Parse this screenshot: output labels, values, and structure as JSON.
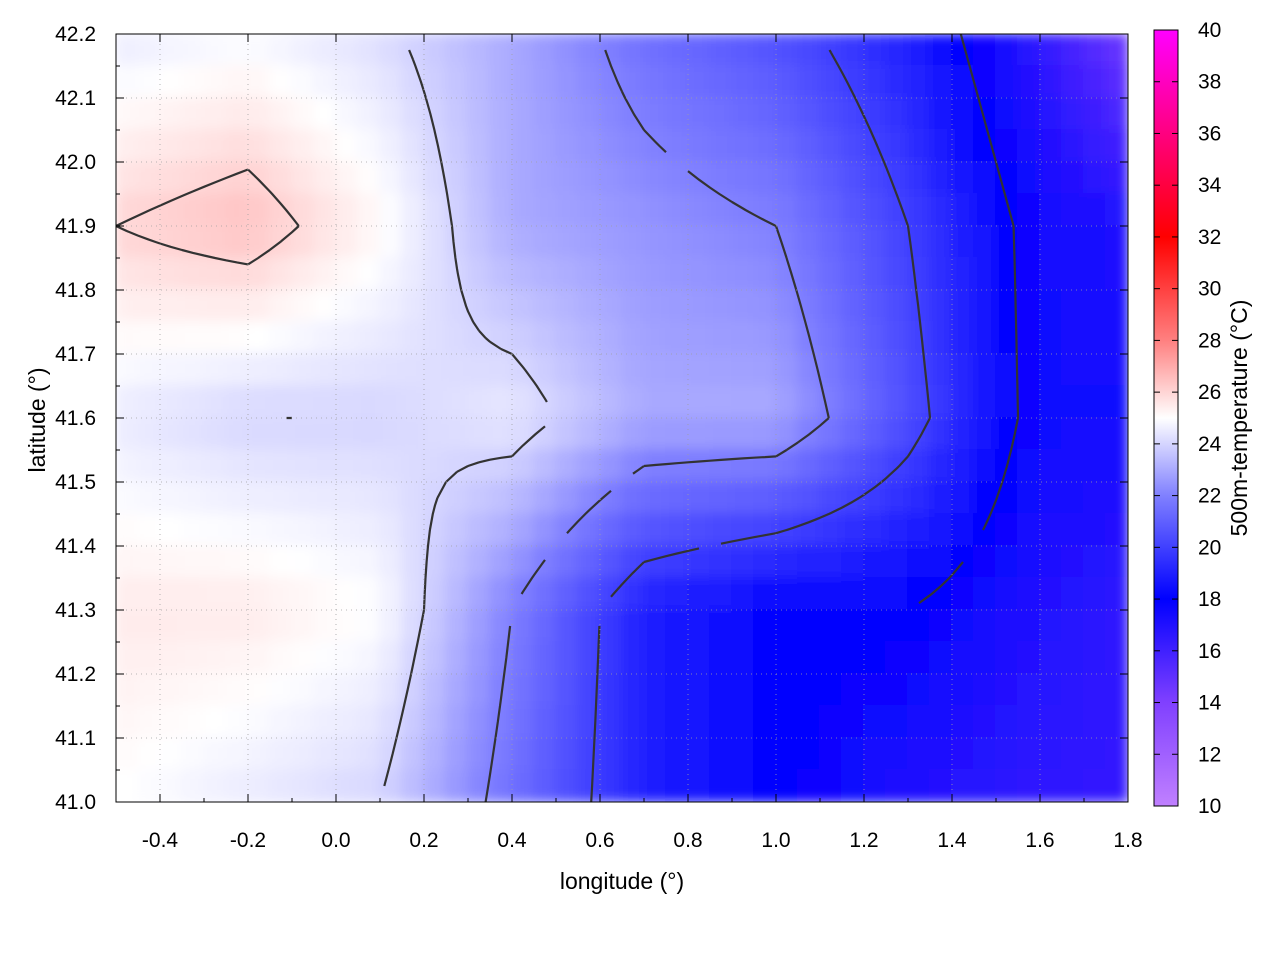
{
  "chart_data": {
    "type": "heatmap",
    "title": "",
    "xlabel": "longitude (°)",
    "ylabel": "latitude (°)",
    "colorbar_label": "500m-temperature (°C)",
    "xlim": [
      -0.5,
      1.8
    ],
    "ylim": [
      41.0,
      42.2
    ],
    "x_ticks": [
      "-0.4",
      "-0.2",
      "0.0",
      "0.2",
      "0.4",
      "0.6",
      "0.8",
      "1.0",
      "1.2",
      "1.4",
      "1.6",
      "1.8"
    ],
    "y_ticks": [
      "41.0",
      "41.1",
      "41.2",
      "41.3",
      "41.4",
      "41.5",
      "41.6",
      "41.7",
      "41.8",
      "41.9",
      "42.0",
      "42.1",
      "42.2"
    ],
    "colorbar_range": [
      10,
      40
    ],
    "colorbar_ticks": [
      "10",
      "12",
      "14",
      "16",
      "18",
      "20",
      "22",
      "24",
      "26",
      "28",
      "30",
      "32",
      "34",
      "36",
      "38",
      "40"
    ],
    "colormap": [
      {
        "value": 10,
        "color": "#c080ff"
      },
      {
        "value": 14,
        "color": "#8040ff"
      },
      {
        "value": 18,
        "color": "#0000ff"
      },
      {
        "value": 22,
        "color": "#8080ff"
      },
      {
        "value": 25,
        "color": "#ffffff"
      },
      {
        "value": 28,
        "color": "#ff8080"
      },
      {
        "value": 32,
        "color": "#ff0000"
      },
      {
        "value": 36,
        "color": "#ff0080"
      },
      {
        "value": 40,
        "color": "#ff00ff"
      }
    ],
    "grid": true,
    "contours": true,
    "grid_lon": [
      -0.5,
      -0.2,
      0.1,
      0.4,
      0.7,
      1.0,
      1.3,
      1.6,
      1.8
    ],
    "grid_lat": [
      42.2,
      41.9,
      41.6,
      41.3,
      41.0
    ],
    "temperature_grid": [
      [
        24.5,
        24.8,
        24.2,
        23.0,
        21.5,
        20.5,
        19.0,
        16.5,
        14.5
      ],
      [
        26.0,
        26.5,
        25.2,
        23.0,
        22.5,
        22.0,
        20.0,
        17.5,
        17.0
      ],
      [
        24.5,
        24.0,
        24.0,
        24.5,
        23.0,
        23.0,
        20.5,
        17.5,
        17.5
      ],
      [
        25.5,
        25.5,
        25.0,
        22.0,
        19.0,
        18.0,
        18.0,
        17.0,
        16.5
      ],
      [
        25.0,
        24.5,
        24.0,
        21.5,
        19.0,
        18.0,
        17.0,
        16.5,
        16.5
      ]
    ],
    "contour_levels": [
      18,
      20,
      22,
      24,
      26
    ]
  }
}
